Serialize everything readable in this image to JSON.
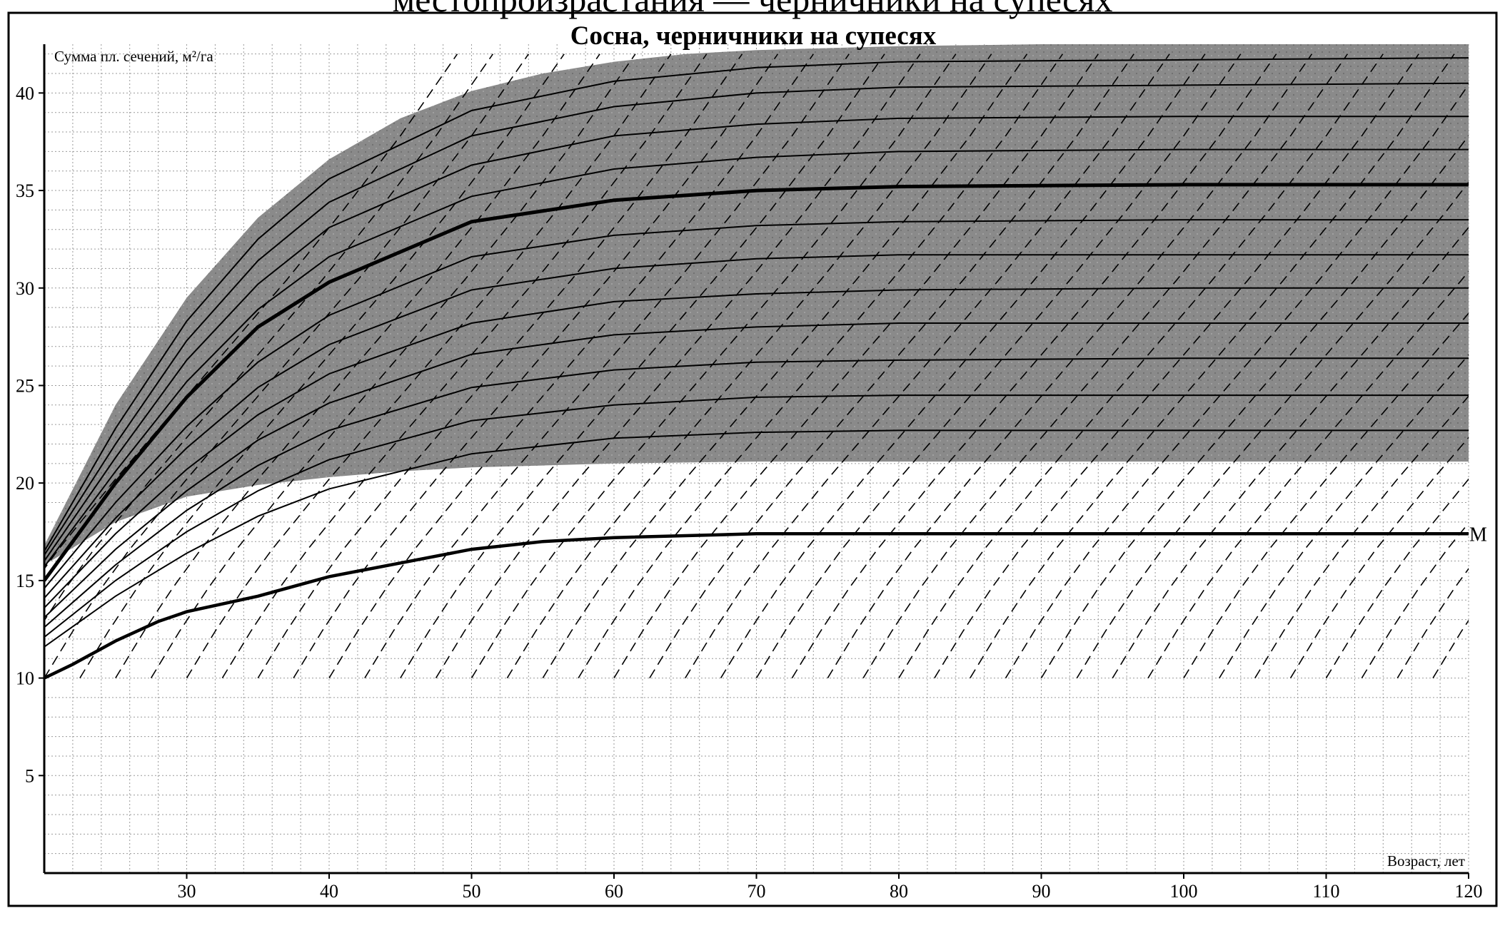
{
  "page": {
    "cut_heading": "местопроизрастания — черничники на супесях"
  },
  "chart_data": {
    "type": "line",
    "title": "Сосна, черничники на супесях",
    "ylabel": "Сумма пл. сечений, м²/га",
    "xlabel": "Возраст, лет",
    "xlim": [
      20,
      120
    ],
    "ylim": [
      0,
      42.5
    ],
    "x_ticks": [
      30,
      40,
      50,
      60,
      70,
      80,
      90,
      100,
      110,
      120
    ],
    "y_ticks": [
      5,
      10,
      15,
      20,
      25,
      30,
      35,
      40
    ],
    "grid": "minor dotted grid, 2-year and 1 m²/га steps",
    "colors": {
      "band": "#8a8a8a",
      "line": "#000000",
      "grid": "#9a9a9a",
      "background": "#ffffff"
    },
    "shaded_band": {
      "upper": {
        "x": [
          20,
          25,
          30,
          35,
          40,
          45,
          50,
          55,
          60,
          65,
          70,
          80,
          90,
          100,
          110,
          120
        ],
        "y": [
          16.8,
          24.0,
          29.5,
          33.6,
          36.6,
          38.7,
          40.1,
          41.0,
          41.6,
          42.0,
          42.2,
          42.4,
          42.5,
          42.5,
          42.5,
          42.5
        ]
      },
      "lower": {
        "x": [
          20,
          25,
          30,
          35,
          40,
          45,
          50,
          55,
          60,
          70,
          80,
          90,
          100,
          110,
          120
        ],
        "y": [
          15.8,
          18.0,
          19.3,
          19.9,
          20.3,
          20.6,
          20.8,
          20.9,
          21.0,
          21.1,
          21.1,
          21.1,
          21.1,
          21.1,
          21.1
        ]
      }
    },
    "solid_curves": [
      {
        "x": [
          20,
          25,
          30,
          35,
          40,
          50,
          60,
          70,
          80,
          100,
          120
        ],
        "y": [
          16.5,
          22.8,
          28.3,
          32.5,
          35.6,
          39.1,
          40.6,
          41.3,
          41.6,
          41.7,
          41.8
        ]
      },
      {
        "x": [
          20,
          25,
          30,
          35,
          40,
          50,
          60,
          70,
          80,
          100,
          120
        ],
        "y": [
          16.3,
          22.0,
          27.3,
          31.4,
          34.4,
          37.8,
          39.3,
          40.0,
          40.3,
          40.4,
          40.5
        ]
      },
      {
        "x": [
          20,
          25,
          30,
          35,
          40,
          50,
          60,
          70,
          80,
          100,
          120
        ],
        "y": [
          16.0,
          21.3,
          26.3,
          30.2,
          33.1,
          36.3,
          37.8,
          38.4,
          38.7,
          38.8,
          38.8
        ]
      },
      {
        "x": [
          20,
          25,
          30,
          35,
          40,
          50,
          60,
          70,
          80,
          100,
          120
        ],
        "y": [
          15.7,
          20.6,
          25.2,
          28.9,
          31.6,
          34.7,
          36.1,
          36.7,
          37.0,
          37.1,
          37.1
        ]
      },
      {
        "x": [
          20,
          25,
          30,
          35,
          40,
          50,
          60,
          70,
          80,
          100,
          120
        ],
        "y": [
          15.0,
          20.0,
          24.4,
          28.0,
          30.3,
          33.4,
          34.5,
          35.0,
          35.2,
          35.3,
          35.3
        ],
        "bold": true
      },
      {
        "x": [
          20,
          25,
          30,
          35,
          40,
          50,
          60,
          70,
          80,
          100,
          120
        ],
        "y": [
          14.6,
          19.0,
          22.9,
          26.2,
          28.6,
          31.6,
          32.7,
          33.2,
          33.4,
          33.5,
          33.5
        ]
      },
      {
        "x": [
          20,
          25,
          30,
          35,
          40,
          50,
          60,
          70,
          80,
          100,
          120
        ],
        "y": [
          14.1,
          18.2,
          21.8,
          24.9,
          27.1,
          29.9,
          31.0,
          31.5,
          31.7,
          31.7,
          31.7
        ]
      },
      {
        "x": [
          20,
          25,
          30,
          35,
          40,
          50,
          60,
          70,
          80,
          100,
          120
        ],
        "y": [
          13.6,
          17.4,
          20.7,
          23.5,
          25.6,
          28.2,
          29.3,
          29.7,
          29.9,
          30.0,
          30.0
        ]
      },
      {
        "x": [
          20,
          25,
          30,
          35,
          40,
          50,
          60,
          70,
          80,
          100,
          120
        ],
        "y": [
          13.1,
          16.6,
          19.6,
          22.2,
          24.1,
          26.6,
          27.6,
          28.0,
          28.2,
          28.2,
          28.2
        ]
      },
      {
        "x": [
          20,
          25,
          30,
          35,
          40,
          50,
          60,
          70,
          80,
          100,
          120
        ],
        "y": [
          12.6,
          15.8,
          18.6,
          20.9,
          22.7,
          24.9,
          25.8,
          26.2,
          26.3,
          26.4,
          26.4
        ]
      },
      {
        "x": [
          20,
          25,
          30,
          35,
          40,
          50,
          60,
          70,
          80,
          100,
          120
        ],
        "y": [
          12.1,
          15.0,
          17.5,
          19.6,
          21.2,
          23.2,
          24.0,
          24.4,
          24.5,
          24.5,
          24.5
        ]
      },
      {
        "x": [
          20,
          25,
          30,
          35,
          40,
          50,
          60,
          70,
          80,
          100,
          120
        ],
        "y": [
          11.6,
          14.2,
          16.4,
          18.3,
          19.7,
          21.5,
          22.3,
          22.6,
          22.7,
          22.7,
          22.7
        ]
      }
    ],
    "minimum_line": {
      "label": "М",
      "x": [
        20,
        22,
        25,
        28,
        30,
        35,
        40,
        45,
        50,
        55,
        60,
        70,
        80,
        90,
        100,
        110,
        120
      ],
      "y": [
        10.0,
        10.7,
        11.9,
        12.9,
        13.4,
        14.2,
        15.2,
        15.9,
        16.6,
        17.0,
        17.2,
        17.4,
        17.4,
        17.4,
        17.4,
        17.4,
        17.4
      ]
    },
    "dashed_lines": {
      "description_note": "parallel dashed diagonals, same shape shifted right",
      "start_x": [
        15,
        17.5,
        20,
        22.5,
        25,
        27.5,
        30,
        32.5,
        35,
        37.5,
        40,
        42.5,
        45,
        47.5,
        50,
        52.5,
        55,
        57.5,
        60,
        62.5,
        65,
        67.5,
        70,
        72.5,
        75,
        77.5,
        80,
        82.5,
        85,
        87.5,
        90,
        92.5,
        95,
        97.5,
        100,
        102.5,
        105,
        107.5,
        110,
        112.5,
        115,
        117.5
      ],
      "shape_dx": [
        0,
        2,
        4,
        6,
        8,
        10,
        12,
        14,
        16,
        18,
        20,
        22,
        24,
        26,
        28,
        30,
        32,
        34
      ],
      "shape_y": [
        10.0,
        12.4,
        14.6,
        16.6,
        18.4,
        20.2,
        21.9,
        23.6,
        25.3,
        27.0,
        28.7,
        30.4,
        32.2,
        34.0,
        35.9,
        37.8,
        39.9,
        42.0
      ]
    }
  }
}
